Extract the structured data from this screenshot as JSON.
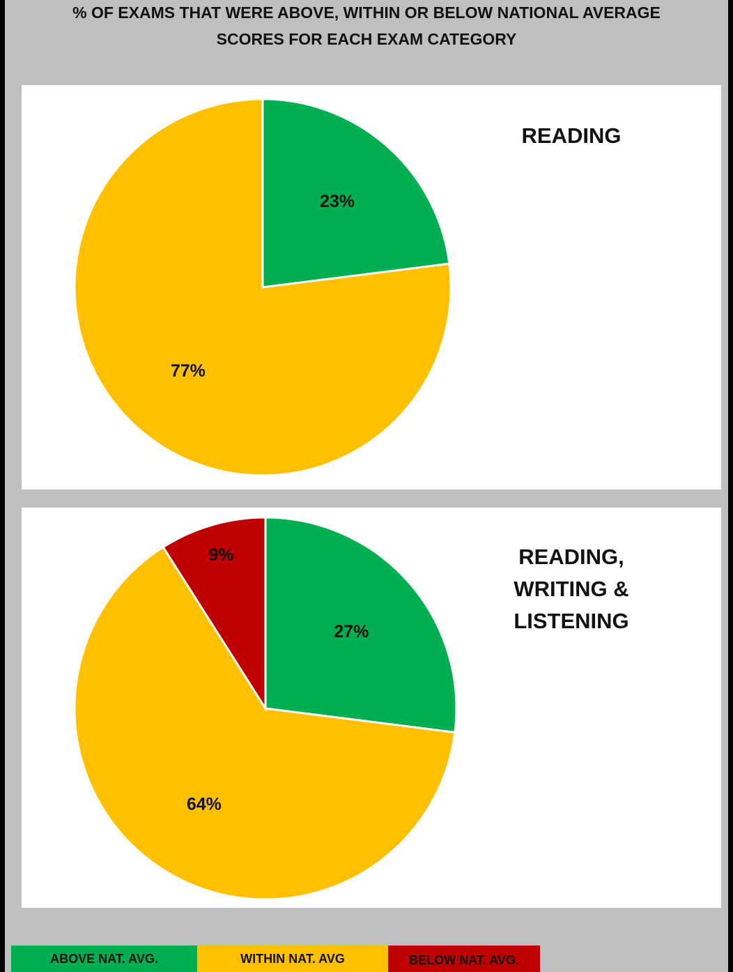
{
  "title": {
    "line1": "% OF EXAMS THAT WERE ABOVE, WITHIN OR BELOW NATIONAL AVERAGE",
    "line2": "SCORES FOR EACH EXAM CATEGORY"
  },
  "colors": {
    "above": "#00b050",
    "within": "#ffc000",
    "below": "#c00000",
    "background": "#bfbfbf"
  },
  "chart_data": [
    {
      "type": "pie",
      "title": "READING",
      "slices": [
        {
          "category": "ABOVE NAT. AVG.",
          "value": 23,
          "label": "23%",
          "color": "#00b050"
        },
        {
          "category": "WITHIN NAT. AVG",
          "value": 77,
          "label": "77%",
          "color": "#ffc000"
        }
      ]
    },
    {
      "type": "pie",
      "title": "READING, WRITING & LISTENING",
      "slices": [
        {
          "category": "ABOVE NAT. AVG.",
          "value": 27,
          "label": "27%",
          "color": "#00b050"
        },
        {
          "category": "WITHIN NAT. AVG",
          "value": 64,
          "label": "64%",
          "color": "#ffc000"
        },
        {
          "category": "BELOW NAT. AVG.",
          "value": 9,
          "label": "9%",
          "color": "#c00000"
        }
      ]
    }
  ],
  "panel2_title_lines": [
    "READING,",
    "WRITING &",
    "LISTENING"
  ],
  "legend": [
    {
      "label": "ABOVE NAT. AVG.",
      "color": "#00b050"
    },
    {
      "label": "WITHIN NAT. AVG",
      "color": "#ffc000"
    },
    {
      "label": "BELOW NAT. AVG.",
      "color": "#c00000"
    }
  ]
}
